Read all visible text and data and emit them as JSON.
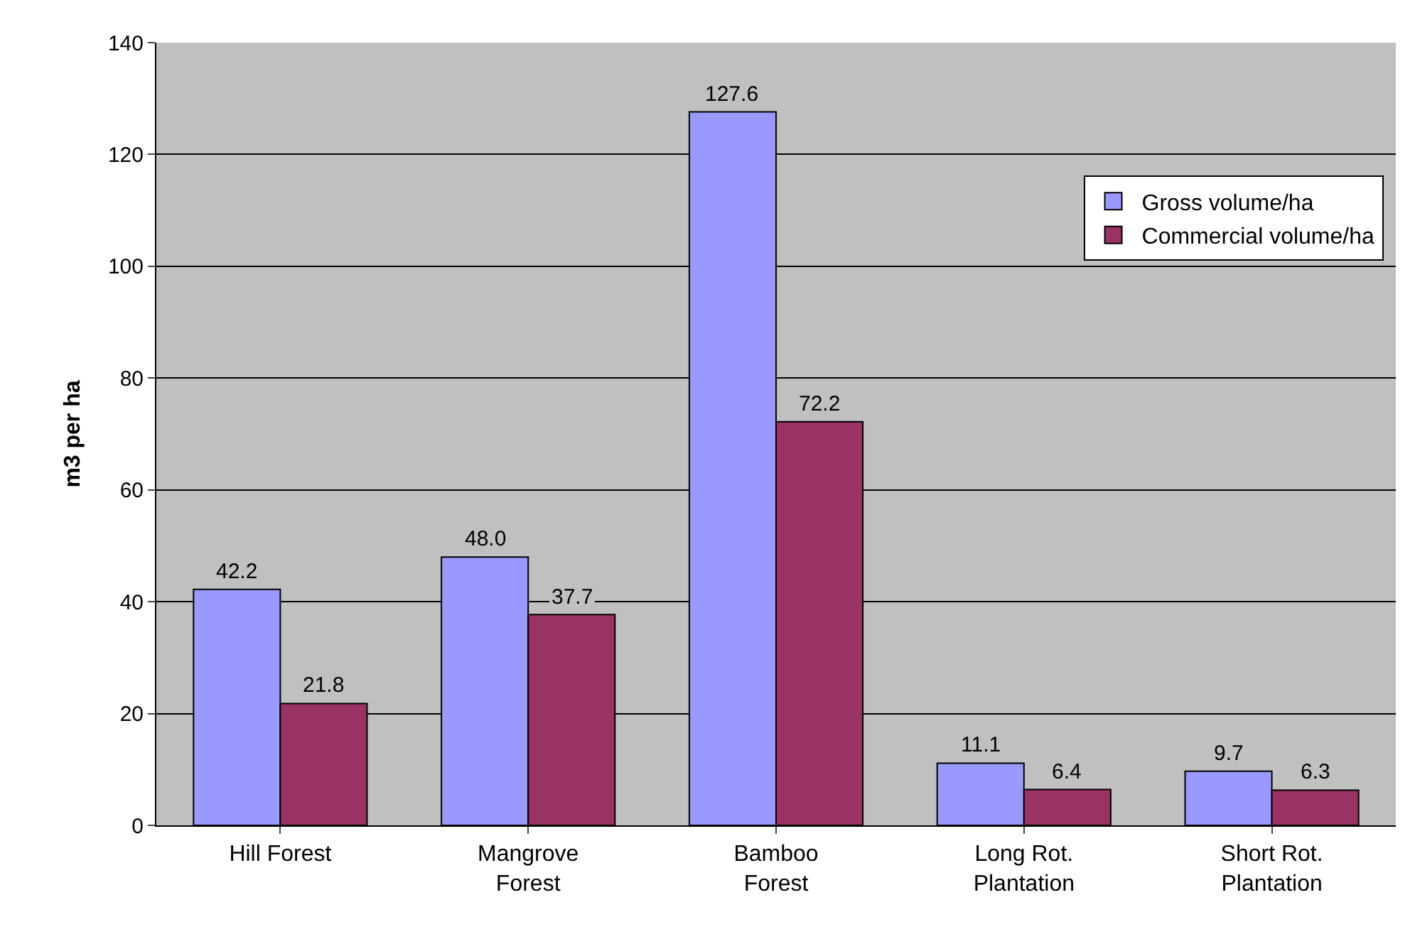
{
  "chart_data": {
    "type": "bar",
    "ylabel": "m3 per ha",
    "categories": [
      "Hill Forest",
      "Mangrove\nForest",
      "Bamboo\nForest",
      "Long Rot.\nPlantation",
      "Short Rot.\nPlantation"
    ],
    "series": [
      {
        "name": "Gross volume/ha",
        "color": "#9999ff",
        "values": [
          42.2,
          48.0,
          127.6,
          11.1,
          9.7
        ],
        "value_labels": [
          "42.2",
          "48.0",
          "127.6",
          "11.1",
          "9.7"
        ]
      },
      {
        "name": "Commercial volume/ha",
        "color": "#993366",
        "values": [
          21.8,
          37.7,
          72.2,
          6.4,
          6.3
        ],
        "value_labels": [
          "21.8",
          "37.7",
          "72.2",
          "6.4",
          "6.3"
        ]
      }
    ],
    "ylim": [
      0,
      140
    ],
    "yticks": [
      0,
      20,
      40,
      60,
      80,
      100,
      120,
      140
    ],
    "grid": "y",
    "legend": "top right"
  }
}
